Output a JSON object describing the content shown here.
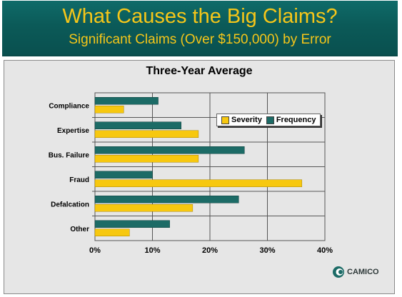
{
  "header": {
    "title": "What Causes the Big Claims?",
    "subtitle": "Significant Claims (Over $150,000) by Error"
  },
  "branding": {
    "logo_text": "CAMICO"
  },
  "colors": {
    "header_bg": "#0b5a58",
    "title_text": "#f6c619",
    "severity": "#f7c80f",
    "frequency": "#1c6b66",
    "panel_bg": "#e6e6e6"
  },
  "chart_data": {
    "type": "bar",
    "orientation": "horizontal",
    "title": "Three-Year Average",
    "categories": [
      "Compliance",
      "Expertise",
      "Bus. Failure",
      "Fraud",
      "Defalcation",
      "Other"
    ],
    "series": [
      {
        "name": "Frequency",
        "values": [
          11,
          15,
          26,
          10,
          25,
          13
        ]
      },
      {
        "name": "Severity",
        "values": [
          5,
          18,
          18,
          36,
          17,
          6
        ]
      }
    ],
    "xlim": [
      0,
      40
    ],
    "x_ticks": [
      "0%",
      "10%",
      "20%",
      "30%",
      "40%"
    ],
    "grid": true,
    "legend_position": "top-right"
  }
}
